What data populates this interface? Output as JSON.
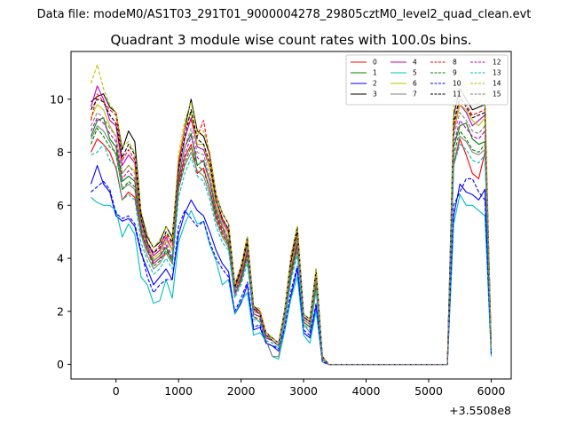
{
  "chart_data": {
    "type": "line",
    "suptitle": "Data file: modeM0/AS1T03_291T01_9000004278_29805cztM0_level2_quad_clean.evt",
    "title": "Quadrant 3 module wise count rates with 100.0s bins.",
    "x_offset_label": "+3.5508e8",
    "xlim": [
      -720,
      6320
    ],
    "ylim": [
      -0.55,
      11.8
    ],
    "xticks": [
      0,
      1000,
      2000,
      3000,
      4000,
      5000,
      6000
    ],
    "xtick_labels": [
      "0",
      "1000",
      "2000",
      "3000",
      "4000",
      "5000",
      "6000"
    ],
    "yticks": [
      0,
      2,
      4,
      6,
      8,
      10
    ],
    "ytick_labels": [
      "0",
      "2",
      "4",
      "6",
      "8",
      "10"
    ],
    "legend_position": "upper-right",
    "x": [
      -400,
      -300,
      -200,
      -100,
      0,
      100,
      200,
      300,
      400,
      500,
      600,
      700,
      800,
      900,
      1000,
      1100,
      1200,
      1300,
      1400,
      1500,
      1600,
      1700,
      1800,
      1900,
      2000,
      2100,
      2200,
      2300,
      2400,
      2500,
      2600,
      2700,
      2800,
      2900,
      3000,
      3100,
      3200,
      3300,
      3400,
      3500,
      3600,
      3700,
      3800,
      3900,
      4000,
      4100,
      4200,
      4300,
      4400,
      4500,
      4600,
      4700,
      4800,
      4900,
      5000,
      5100,
      5200,
      5300,
      5400,
      5500,
      5600,
      5700,
      5800,
      5900,
      6000
    ],
    "series": [
      {
        "name": "0",
        "color": "#ff0000",
        "dash": false,
        "values": [
          8.0,
          8.5,
          8.3,
          8.0,
          7.4,
          6.2,
          6.5,
          6.3,
          5.0,
          4.3,
          3.8,
          4.0,
          4.2,
          3.8,
          6.8,
          7.8,
          8.3,
          7.2,
          7.4,
          6.6,
          5.6,
          5.0,
          4.5,
          2.6,
          3.2,
          4.2,
          1.9,
          1.8,
          1.0,
          0.9,
          0.7,
          1.8,
          3.5,
          4.5,
          1.6,
          1.4,
          3.0,
          0.2,
          0.0,
          0.0,
          0.0,
          0.0,
          0.0,
          0.0,
          0.0,
          0.0,
          0.0,
          0.0,
          0.0,
          0.0,
          0.0,
          0.0,
          0.0,
          0.0,
          0.0,
          0.0,
          0.0,
          0.0,
          7.5,
          8.5,
          7.9,
          7.2,
          7.0,
          8.0,
          0.6
        ]
      },
      {
        "name": "1",
        "color": "#008000",
        "dash": false,
        "values": [
          8.6,
          9.2,
          9.3,
          8.5,
          8.2,
          6.9,
          7.1,
          6.9,
          5.2,
          4.5,
          3.9,
          4.1,
          4.4,
          3.9,
          7.0,
          8.2,
          8.7,
          7.5,
          7.7,
          6.9,
          5.8,
          5.2,
          4.6,
          2.8,
          3.3,
          4.4,
          2.0,
          1.9,
          1.1,
          1.0,
          0.8,
          1.9,
          3.6,
          4.7,
          1.7,
          1.5,
          3.1,
          0.2,
          0.0,
          0.0,
          0.0,
          0.0,
          0.0,
          0.0,
          0.0,
          0.0,
          0.0,
          0.0,
          0.0,
          0.0,
          0.0,
          0.0,
          0.0,
          0.0,
          0.0,
          0.0,
          0.0,
          0.0,
          8.2,
          9.0,
          9.1,
          8.5,
          8.3,
          8.4,
          0.6
        ]
      },
      {
        "name": "2",
        "color": "#0000ff",
        "dash": false,
        "values": [
          6.8,
          7.5,
          6.8,
          6.5,
          5.6,
          5.4,
          5.5,
          5.2,
          4.2,
          3.6,
          3.0,
          3.3,
          3.6,
          3.2,
          4.9,
          5.7,
          6.2,
          5.8,
          5.6,
          5.0,
          4.3,
          3.8,
          3.5,
          1.9,
          2.3,
          3.0,
          1.3,
          1.4,
          0.8,
          0.7,
          0.5,
          1.3,
          2.6,
          3.6,
          1.2,
          1.0,
          2.2,
          0.1,
          0.0,
          0.0,
          0.0,
          0.0,
          0.0,
          0.0,
          0.0,
          0.0,
          0.0,
          0.0,
          0.0,
          0.0,
          0.0,
          0.0,
          0.0,
          0.0,
          0.0,
          0.0,
          0.0,
          0.0,
          5.6,
          6.8,
          6.5,
          6.4,
          6.2,
          6.6,
          0.4
        ]
      },
      {
        "name": "3",
        "color": "#000000",
        "dash": false,
        "values": [
          9.9,
          10.1,
          10.2,
          9.7,
          9.5,
          8.1,
          8.8,
          8.4,
          5.7,
          4.8,
          4.4,
          4.6,
          5.2,
          4.8,
          7.6,
          8.9,
          10.0,
          8.8,
          8.6,
          7.9,
          6.4,
          5.7,
          5.3,
          3.0,
          3.7,
          4.8,
          2.2,
          2.0,
          1.2,
          1.0,
          0.8,
          2.1,
          4.1,
          5.2,
          1.9,
          1.7,
          3.6,
          0.3,
          0.0,
          0.0,
          0.0,
          0.0,
          0.0,
          0.0,
          0.0,
          0.0,
          0.0,
          0.0,
          0.0,
          0.0,
          0.0,
          0.0,
          0.0,
          0.0,
          0.0,
          0.0,
          0.0,
          0.0,
          9.4,
          10.4,
          10.0,
          9.6,
          9.7,
          9.8,
          0.7
        ]
      },
      {
        "name": "4",
        "color": "#bf00bf",
        "dash": false,
        "values": [
          9.7,
          10.5,
          10.0,
          9.2,
          9.0,
          7.5,
          7.9,
          7.6,
          5.4,
          4.6,
          4.1,
          4.3,
          4.8,
          4.3,
          7.3,
          8.5,
          9.3,
          8.2,
          8.1,
          7.4,
          6.0,
          5.4,
          5.0,
          2.9,
          3.5,
          4.6,
          2.1,
          1.9,
          1.1,
          0.9,
          0.7,
          2.0,
          3.9,
          4.9,
          1.8,
          1.6,
          3.4,
          0.2,
          0.0,
          0.0,
          0.0,
          0.0,
          0.0,
          0.0,
          0.0,
          0.0,
          0.0,
          0.0,
          0.0,
          0.0,
          0.0,
          0.0,
          0.0,
          0.0,
          0.0,
          0.0,
          0.0,
          0.0,
          8.8,
          9.8,
          9.5,
          9.0,
          9.2,
          9.4,
          0.7
        ]
      },
      {
        "name": "5",
        "color": "#00bfbf",
        "dash": false,
        "values": [
          6.3,
          6.1,
          6.0,
          6.0,
          5.8,
          4.8,
          5.3,
          4.9,
          3.3,
          3.0,
          2.3,
          2.4,
          3.2,
          2.5,
          4.6,
          5.3,
          5.8,
          5.3,
          5.4,
          4.5,
          3.9,
          3.0,
          3.2,
          1.9,
          2.4,
          2.7,
          1.1,
          1.2,
          0.9,
          0.3,
          0.2,
          1.3,
          2.5,
          3.3,
          1.1,
          0.8,
          2.0,
          0.1,
          0.0,
          0.0,
          0.0,
          0.0,
          0.0,
          0.0,
          0.0,
          0.0,
          0.0,
          0.0,
          0.0,
          0.0,
          0.0,
          0.0,
          0.0,
          0.0,
          0.0,
          0.0,
          0.0,
          0.0,
          5.3,
          6.4,
          6.0,
          6.0,
          5.8,
          5.6,
          0.3
        ]
      },
      {
        "name": "6",
        "color": "#bfbf00",
        "dash": false,
        "values": [
          9.3,
          9.8,
          9.6,
          9.0,
          8.6,
          7.2,
          7.5,
          7.3,
          5.3,
          4.4,
          4.0,
          4.2,
          4.7,
          4.3,
          7.7,
          8.9,
          9.5,
          8.3,
          8.3,
          7.4,
          6.0,
          5.3,
          4.9,
          2.8,
          3.4,
          4.5,
          2.0,
          1.9,
          1.1,
          0.9,
          0.7,
          1.9,
          3.8,
          4.8,
          1.7,
          1.5,
          3.3,
          0.2,
          0.0,
          0.0,
          0.0,
          0.0,
          0.0,
          0.0,
          0.0,
          0.0,
          0.0,
          0.0,
          0.0,
          0.0,
          0.0,
          0.0,
          0.0,
          0.0,
          0.0,
          0.0,
          0.0,
          0.0,
          8.9,
          9.8,
          9.6,
          9.2,
          9.0,
          9.3,
          0.7
        ]
      },
      {
        "name": "7",
        "color": "#808080",
        "dash": false,
        "values": [
          8.5,
          9.0,
          8.8,
          8.4,
          7.9,
          6.6,
          6.8,
          6.6,
          4.9,
          4.1,
          3.6,
          3.8,
          4.2,
          3.8,
          6.6,
          7.5,
          8.0,
          7.3,
          7.1,
          6.4,
          5.4,
          4.8,
          4.4,
          2.6,
          3.1,
          4.0,
          1.8,
          1.6,
          0.9,
          0.3,
          0.3,
          1.6,
          3.3,
          4.3,
          1.5,
          1.2,
          2.8,
          0.2,
          0.0,
          0.0,
          0.0,
          0.0,
          0.0,
          0.0,
          0.0,
          0.0,
          0.0,
          0.0,
          0.0,
          0.0,
          0.0,
          0.0,
          0.0,
          0.0,
          0.0,
          0.0,
          0.0,
          0.0,
          7.6,
          8.6,
          8.4,
          8.0,
          7.9,
          8.1,
          0.6
        ]
      },
      {
        "name": "8",
        "color": "#ff0000",
        "dash": true,
        "values": [
          9.2,
          10.2,
          9.9,
          9.6,
          9.4,
          7.7,
          8.1,
          7.7,
          5.5,
          4.6,
          4.2,
          4.5,
          4.9,
          4.5,
          7.6,
          8.9,
          9.2,
          8.6,
          9.2,
          7.8,
          6.2,
          5.5,
          5.1,
          2.9,
          3.6,
          4.7,
          2.1,
          2.0,
          1.2,
          1.0,
          0.8,
          2.0,
          4.0,
          5.0,
          1.8,
          1.6,
          3.5,
          0.3,
          0.0,
          0.0,
          0.0,
          0.0,
          0.0,
          0.0,
          0.0,
          0.0,
          0.0,
          0.0,
          0.0,
          0.0,
          0.0,
          0.0,
          0.0,
          0.0,
          0.0,
          0.0,
          0.0,
          0.0,
          9.0,
          10.0,
          9.8,
          9.4,
          9.5,
          9.6,
          0.7
        ]
      },
      {
        "name": "9",
        "color": "#008000",
        "dash": true,
        "values": [
          8.3,
          8.9,
          8.6,
          8.2,
          8.0,
          6.6,
          6.9,
          6.7,
          5.0,
          4.3,
          3.7,
          3.9,
          4.3,
          3.9,
          6.7,
          7.6,
          8.2,
          7.5,
          7.3,
          6.6,
          5.5,
          4.9,
          4.5,
          2.7,
          3.2,
          4.1,
          1.8,
          1.7,
          1.0,
          0.9,
          0.7,
          1.8,
          3.4,
          4.4,
          1.6,
          1.4,
          3.0,
          0.2,
          0.0,
          0.0,
          0.0,
          0.0,
          0.0,
          0.0,
          0.0,
          0.0,
          0.0,
          0.0,
          0.0,
          0.0,
          0.0,
          0.0,
          0.0,
          0.0,
          0.0,
          0.0,
          0.0,
          0.0,
          7.9,
          8.8,
          8.5,
          8.1,
          8.0,
          8.3,
          0.6
        ]
      },
      {
        "name": "10",
        "color": "#0000ff",
        "dash": true,
        "values": [
          6.5,
          6.7,
          6.9,
          6.6,
          5.7,
          5.5,
          5.6,
          5.3,
          4.3,
          3.3,
          2.7,
          3.0,
          3.2,
          3.2,
          5.2,
          5.8,
          5.5,
          5.2,
          5.4,
          4.6,
          4.0,
          3.6,
          3.3,
          2.0,
          2.5,
          3.1,
          1.4,
          1.5,
          0.8,
          0.7,
          0.6,
          1.4,
          2.8,
          3.7,
          1.3,
          1.1,
          2.3,
          0.1,
          0.0,
          0.0,
          0.0,
          0.0,
          0.0,
          0.0,
          0.0,
          0.0,
          0.0,
          0.0,
          0.0,
          0.0,
          0.0,
          0.0,
          0.0,
          0.0,
          0.0,
          0.0,
          0.0,
          0.0,
          6.0,
          6.5,
          7.0,
          7.0,
          6.5,
          6.2,
          0.4
        ]
      },
      {
        "name": "11",
        "color": "#000000",
        "dash": true,
        "values": [
          9.6,
          10.0,
          9.9,
          9.4,
          9.1,
          7.8,
          8.3,
          7.9,
          5.5,
          4.6,
          4.2,
          4.4,
          5.0,
          4.6,
          7.4,
          8.6,
          9.6,
          8.5,
          8.3,
          7.6,
          6.2,
          5.5,
          5.1,
          2.9,
          3.6,
          4.6,
          2.1,
          1.9,
          1.1,
          0.9,
          0.7,
          2.0,
          3.9,
          5.0,
          1.8,
          1.6,
          3.5,
          0.3,
          0.0,
          0.0,
          0.0,
          0.0,
          0.0,
          0.0,
          0.0,
          0.0,
          0.0,
          0.0,
          0.0,
          0.0,
          0.0,
          0.0,
          0.0,
          0.0,
          0.0,
          0.0,
          0.0,
          0.0,
          9.1,
          10.1,
          9.7,
          9.3,
          9.4,
          9.5,
          0.7
        ]
      },
      {
        "name": "12",
        "color": "#bf00bf",
        "dash": true,
        "values": [
          8.8,
          9.3,
          9.1,
          8.7,
          8.4,
          7.0,
          7.3,
          7.0,
          5.1,
          4.4,
          3.8,
          4.0,
          4.5,
          4.0,
          6.9,
          7.9,
          8.6,
          7.8,
          7.6,
          6.9,
          5.7,
          5.1,
          4.7,
          2.7,
          3.3,
          4.3,
          1.9,
          1.8,
          1.0,
          0.9,
          0.7,
          1.9,
          3.6,
          4.6,
          1.7,
          1.5,
          3.2,
          0.2,
          0.0,
          0.0,
          0.0,
          0.0,
          0.0,
          0.0,
          0.0,
          0.0,
          0.0,
          0.0,
          0.0,
          0.0,
          0.0,
          0.0,
          0.0,
          0.0,
          0.0,
          0.0,
          0.0,
          0.0,
          8.3,
          9.2,
          8.9,
          8.6,
          8.5,
          8.8,
          0.6
        ]
      },
      {
        "name": "13",
        "color": "#00bfbf",
        "dash": true,
        "values": [
          7.9,
          8.0,
          8.3,
          7.7,
          7.5,
          6.2,
          6.4,
          6.2,
          4.6,
          3.9,
          3.4,
          3.6,
          4.0,
          3.6,
          6.3,
          7.2,
          7.8,
          7.1,
          6.9,
          6.2,
          5.2,
          4.6,
          4.3,
          2.5,
          3.0,
          3.8,
          1.7,
          1.6,
          0.9,
          0.8,
          0.6,
          1.7,
          3.2,
          4.1,
          1.5,
          1.3,
          2.8,
          0.2,
          0.0,
          0.0,
          0.0,
          0.0,
          0.0,
          0.0,
          0.0,
          0.0,
          0.0,
          0.0,
          0.0,
          0.0,
          0.0,
          0.0,
          0.0,
          0.0,
          0.0,
          0.0,
          0.0,
          0.0,
          7.5,
          8.3,
          8.1,
          7.7,
          7.6,
          7.9,
          0.5
        ]
      },
      {
        "name": "14",
        "color": "#bfbf00",
        "dash": true,
        "values": [
          10.6,
          11.3,
          10.4,
          9.8,
          9.5,
          8.2,
          8.4,
          8.0,
          5.8,
          4.9,
          4.4,
          4.7,
          5.2,
          4.7,
          7.9,
          9.2,
          9.9,
          8.7,
          8.8,
          8.0,
          6.4,
          5.7,
          5.3,
          3.0,
          3.7,
          4.8,
          2.2,
          2.1,
          1.2,
          1.0,
          0.8,
          2.1,
          4.1,
          5.2,
          1.9,
          1.7,
          3.6,
          0.3,
          0.0,
          0.0,
          0.0,
          0.0,
          0.0,
          0.0,
          0.0,
          0.0,
          0.0,
          0.0,
          0.0,
          0.0,
          0.0,
          0.0,
          0.0,
          0.0,
          0.0,
          0.0,
          0.0,
          0.0,
          9.8,
          11.0,
          10.4,
          10.0,
          9.8,
          10.3,
          0.7
        ]
      },
      {
        "name": "15",
        "color": "#808080",
        "dash": true,
        "values": [
          9.0,
          9.5,
          9.3,
          8.9,
          8.6,
          7.2,
          7.5,
          7.2,
          5.3,
          4.5,
          3.9,
          4.1,
          4.6,
          4.1,
          7.1,
          8.2,
          8.9,
          8.0,
          7.9,
          7.1,
          5.9,
          5.2,
          4.8,
          2.8,
          3.4,
          4.4,
          2.0,
          1.9,
          1.1,
          0.9,
          0.7,
          1.9,
          3.7,
          4.7,
          1.7,
          1.5,
          3.2,
          0.2,
          0.0,
          0.0,
          0.0,
          0.0,
          0.0,
          0.0,
          0.0,
          0.0,
          0.0,
          0.0,
          0.0,
          0.0,
          0.0,
          0.0,
          0.0,
          0.0,
          0.0,
          0.0,
          0.0,
          0.0,
          8.6,
          9.5,
          9.2,
          8.8,
          8.7,
          9.0,
          0.6
        ]
      }
    ]
  }
}
